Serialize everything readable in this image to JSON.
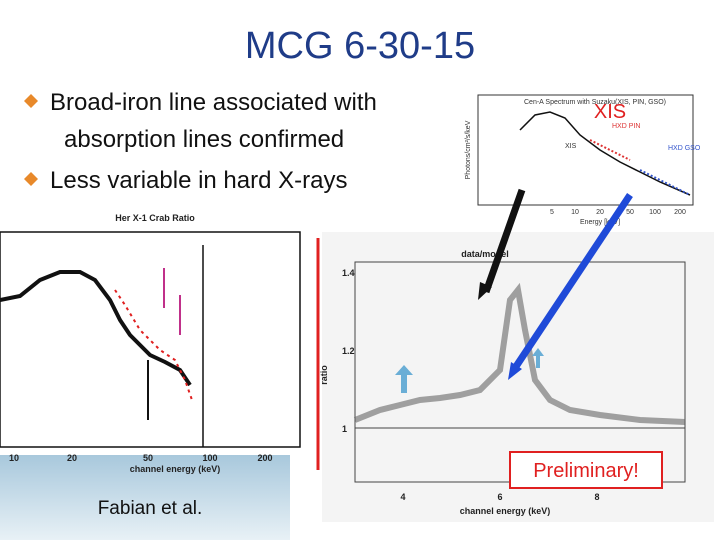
{
  "slide": {
    "title": "MCG 6-30-15",
    "bullets": [
      "Broad-iron line associated with",
      "absorption lines confirmed",
      "Less variable in hard X-rays"
    ],
    "left_plot": {
      "title": "Her X-1 Crab Ratio",
      "x_label": "channel energy (keV)",
      "x_ticks": [
        "10",
        "20",
        "50",
        "100",
        "200"
      ],
      "credit": "Fabian et al."
    },
    "right_plot": {
      "label": "data/model",
      "y_label": "ratio",
      "x_label": "channel energy (keV)",
      "x_ticks": [
        "4",
        "6",
        "8"
      ],
      "y_ticks": [
        "1.4",
        "1.2",
        "1"
      ],
      "stamp": "Preliminary!"
    },
    "top_plot": {
      "title": "Cen-A Spectrum with Suzaku(XIS, PIN, GSO)",
      "callout": "XIS",
      "labels": [
        "XIS",
        "HXD PIN",
        "HXD GSO"
      ],
      "y_label": "Photons/cm²/s/keV",
      "x_label": "Energy [keV]",
      "x_ticks": [
        "5",
        "10",
        "20",
        "50",
        "100",
        "200"
      ]
    }
  }
}
